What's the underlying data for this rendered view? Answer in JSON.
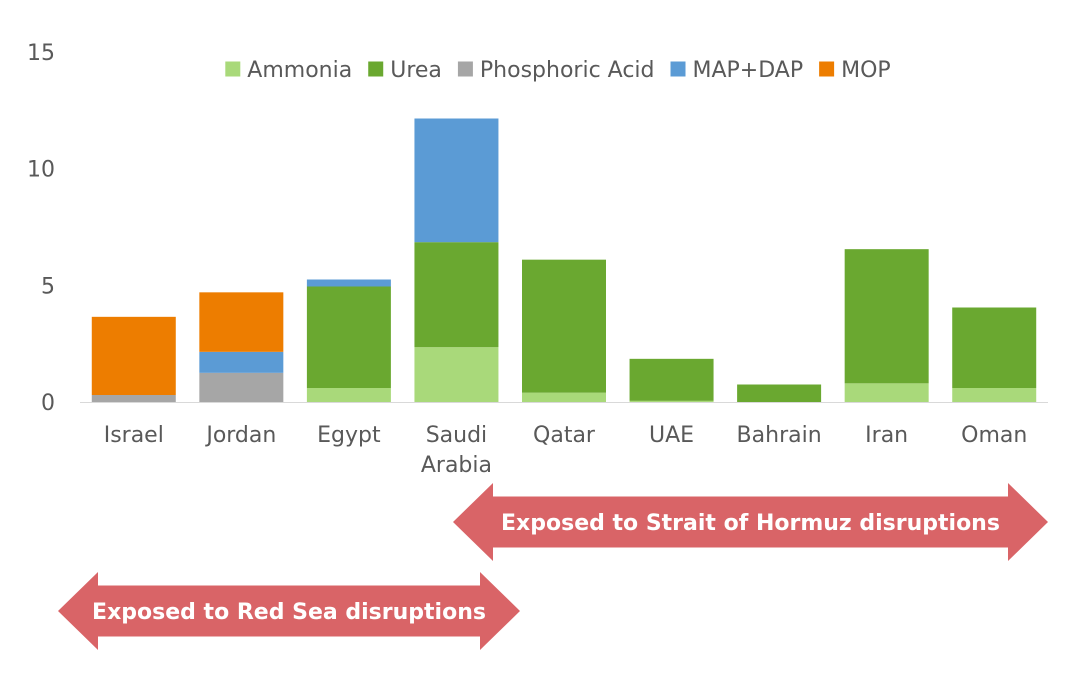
{
  "chart_data": {
    "type": "bar",
    "stacked": true,
    "categories": [
      "Israel",
      "Jordan",
      "Egypt",
      "Saudi Arabia",
      "Qatar",
      "UAE",
      "Bahrain",
      "Iran",
      "Oman"
    ],
    "category_lines": [
      [
        "Israel"
      ],
      [
        "Jordan"
      ],
      [
        "Egypt"
      ],
      [
        "Saudi",
        "Arabia"
      ],
      [
        "Qatar"
      ],
      [
        "UAE"
      ],
      [
        "Bahrain"
      ],
      [
        "Iran"
      ],
      [
        "Oman"
      ]
    ],
    "series": [
      {
        "name": "Ammonia",
        "color": "#a9d97a",
        "values": [
          0,
          0,
          0.6,
          2.35,
          0.4,
          0.05,
          0,
          0.8,
          0.6
        ]
      },
      {
        "name": "Urea",
        "color": "#6aa830",
        "values": [
          0,
          0,
          4.35,
          4.5,
          5.7,
          1.8,
          0.75,
          5.75,
          3.45
        ]
      },
      {
        "name": "Phosphoric Acid",
        "color": "#a6a6a6",
        "values": [
          0.3,
          1.25,
          0,
          0,
          0,
          0,
          0,
          0,
          0
        ]
      },
      {
        "name": "MAP+DAP",
        "color": "#5b9bd5",
        "values": [
          0,
          0.9,
          0.3,
          5.3,
          0,
          0,
          0,
          0,
          0
        ]
      },
      {
        "name": "MOP",
        "color": "#ed7d00",
        "values": [
          3.35,
          2.55,
          0,
          0,
          0,
          0,
          0,
          0,
          0
        ]
      }
    ],
    "yticks": [
      "0",
      "5",
      "10",
      "15"
    ],
    "ylim": [
      0,
      15
    ],
    "grid": false,
    "legend": "top"
  },
  "annotations": [
    {
      "text": "Exposed to Strait of Hormuz disruptions",
      "from": "Saudi Arabia",
      "to": "Oman",
      "color": "#d96467"
    },
    {
      "text": "Exposed to Red Sea disruptions",
      "from": "Israel",
      "to": "Saudi Arabia",
      "color": "#d96467"
    }
  ]
}
